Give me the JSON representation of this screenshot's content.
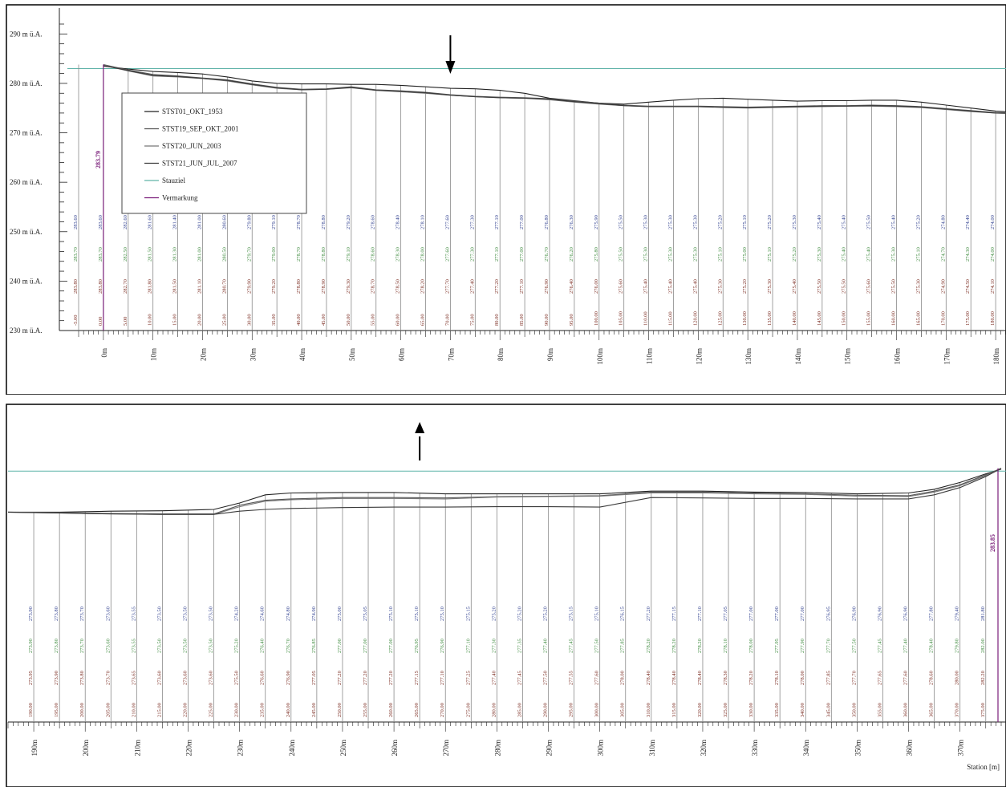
{
  "colors": {
    "frame": "#000000",
    "reference_line": "#5fb3a8",
    "station_line": "#8a8a8a",
    "profile": "#333333",
    "axis_dark": "#222222",
    "label_brown": "#7a2a1f",
    "label_green": "#3d8a3d",
    "label_blue": "#2f3f8f",
    "label_purple": "#7a1e7a"
  },
  "chart_data": [
    {
      "type": "line",
      "yticks": [
        "290 m ü.A.",
        "280 m ü.A.",
        "270 m ü.A.",
        "260 m ü.A.",
        "250 m ü.A.",
        "240 m ü.A.",
        "230 m ü.A."
      ],
      "ylim": [
        230,
        292
      ],
      "xlim": [
        -5,
        185
      ],
      "xtick_labels": [
        "0m",
        "10m",
        "20m",
        "30m",
        "40m",
        "50m",
        "60m",
        "70m",
        "80m",
        "90m",
        "100m",
        "110m",
        "120m",
        "130m",
        "140m",
        "150m",
        "160m",
        "170m",
        "180m"
      ],
      "xtick_values": [
        0,
        10,
        20,
        30,
        40,
        50,
        60,
        70,
        80,
        90,
        100,
        110,
        120,
        130,
        140,
        150,
        160,
        170,
        180
      ],
      "reference_level": 283.0,
      "start_level_label": "283.79",
      "legend": {
        "position": "upper-left",
        "entries": [
          "STST01_OKT_1953",
          "STST19_SEP_OKT_2001",
          "STST20_JUN_2003",
          "STST21_JUN_JUL_2007",
          "Stauziel",
          "Vermarkung"
        ]
      },
      "annotation": "arrow pointing down at 70m",
      "annotation_arrow_x": 70,
      "series": [
        {
          "name": "STST01_OKT_1953",
          "x": [
            0,
            5,
            10,
            15,
            20,
            25,
            30,
            35,
            40,
            45,
            50,
            55,
            60,
            65,
            70,
            75,
            80,
            85,
            90,
            95,
            100,
            105,
            110,
            115,
            120,
            125,
            130,
            135,
            140,
            145,
            150,
            155,
            160,
            165,
            170,
            175,
            180,
            185
          ],
          "y": [
            283.5,
            282.9,
            282.4,
            282.2,
            281.9,
            281.3,
            280.5,
            280.0,
            279.9,
            279.9,
            279.8,
            279.8,
            279.6,
            279.3,
            279.0,
            278.9,
            278.6,
            278.0,
            277.0,
            276.5,
            276.0,
            275.8,
            276.2,
            276.6,
            276.9,
            277.0,
            276.8,
            276.6,
            276.4,
            276.5,
            276.5,
            276.6,
            276.6,
            276.2,
            275.6,
            275.0,
            274.4,
            274.1
          ]
        },
        {
          "name": "STST19_SEP_OKT_2001",
          "x": [
            0,
            5,
            10,
            15,
            20,
            25,
            30,
            35,
            40,
            45,
            50,
            55,
            60,
            65,
            70,
            75,
            80,
            85,
            90,
            95,
            100,
            105,
            110,
            115,
            120,
            125,
            130,
            135,
            140,
            145,
            150,
            155,
            160,
            165,
            170,
            175,
            180,
            185
          ],
          "y": [
            283.8,
            282.7,
            281.8,
            281.5,
            281.1,
            280.7,
            279.9,
            279.2,
            278.8,
            278.9,
            279.3,
            278.7,
            278.5,
            278.2,
            277.7,
            277.4,
            277.2,
            277.1,
            276.9,
            276.4,
            276.0,
            275.6,
            275.4,
            275.4,
            275.4,
            275.3,
            275.2,
            275.3,
            275.4,
            275.5,
            275.5,
            275.6,
            275.5,
            275.3,
            274.9,
            274.5,
            274.1,
            274.0
          ]
        },
        {
          "name": "STST20_JUN_2003",
          "x": [
            0,
            5,
            10,
            15,
            20,
            25,
            30,
            35,
            40,
            45,
            50,
            55,
            60,
            65,
            70,
            75,
            80,
            85,
            90,
            95,
            100,
            105,
            110,
            115,
            120,
            125,
            130,
            135,
            140,
            145,
            150,
            155,
            160,
            165,
            170,
            175,
            180,
            185
          ],
          "y": [
            283.7,
            282.5,
            281.5,
            281.3,
            281.0,
            280.5,
            279.7,
            279.0,
            278.7,
            278.8,
            279.1,
            278.6,
            278.3,
            278.0,
            277.6,
            277.3,
            277.1,
            277.0,
            276.7,
            276.2,
            275.8,
            275.5,
            275.3,
            275.3,
            275.3,
            275.1,
            275.0,
            275.1,
            275.2,
            275.3,
            275.4,
            275.4,
            275.3,
            275.1,
            274.7,
            274.3,
            274.0,
            273.9
          ]
        },
        {
          "name": "STST21_JUN_JUL_2007",
          "x": [
            0,
            5,
            10,
            15,
            20,
            25,
            30,
            35,
            40,
            45,
            50,
            55,
            60,
            65,
            70,
            75,
            80,
            85,
            90,
            95,
            100,
            105,
            110,
            115,
            120,
            125,
            130,
            135,
            140,
            145,
            150,
            155,
            160,
            165,
            170,
            175,
            180,
            185
          ],
          "y": [
            283.6,
            282.6,
            281.6,
            281.4,
            281.0,
            280.6,
            279.8,
            279.1,
            278.7,
            278.8,
            279.2,
            278.6,
            278.4,
            278.1,
            277.6,
            277.3,
            277.1,
            277.0,
            276.8,
            276.3,
            275.9,
            275.5,
            275.3,
            275.3,
            275.3,
            275.2,
            275.1,
            275.2,
            275.3,
            275.4,
            275.4,
            275.5,
            275.4,
            275.2,
            274.8,
            274.4,
            274.0,
            273.9
          ]
        }
      ]
    },
    {
      "type": "line",
      "ylim": [
        228,
        292
      ],
      "xlim": [
        185,
        378
      ],
      "xtick_labels": [
        "190m",
        "200m",
        "210m",
        "220m",
        "230m",
        "240m",
        "250m",
        "260m",
        "270m",
        "280m",
        "290m",
        "300m",
        "310m",
        "320m",
        "330m",
        "340m",
        "350m",
        "360m",
        "370m"
      ],
      "xtick_values": [
        190,
        200,
        210,
        220,
        230,
        240,
        250,
        260,
        270,
        280,
        290,
        300,
        310,
        320,
        330,
        340,
        350,
        360,
        370
      ],
      "xlabel": "Station [m]",
      "reference_level": 283.0,
      "end_level_label": "283.85",
      "annotation": "arrow pointing up at 265m",
      "annotation_arrow_x": 265,
      "series": [
        {
          "name": "STST01_OKT_1953",
          "x": [
            185,
            195,
            205,
            215,
            225,
            230,
            235,
            240,
            250,
            260,
            270,
            280,
            290,
            300,
            310,
            320,
            330,
            340,
            350,
            360,
            365,
            370,
            375,
            378
          ],
          "y": [
            274.0,
            274.0,
            274.2,
            274.3,
            274.6,
            276.0,
            277.8,
            278.2,
            278.3,
            278.3,
            278.0,
            278.0,
            278.0,
            278.0,
            278.6,
            278.6,
            278.4,
            278.3,
            278.0,
            278.2,
            279.0,
            280.5,
            282.4,
            283.4
          ]
        },
        {
          "name": "STST19_SEP_OKT_2001",
          "x": [
            185,
            195,
            205,
            215,
            225,
            230,
            235,
            240,
            250,
            260,
            270,
            280,
            290,
            300,
            310,
            320,
            330,
            340,
            350,
            360,
            365,
            370,
            375,
            378
          ],
          "y": [
            274.0,
            273.9,
            273.7,
            273.6,
            273.6,
            275.5,
            276.6,
            276.9,
            277.2,
            277.2,
            277.1,
            277.4,
            277.5,
            277.6,
            278.4,
            278.4,
            278.2,
            278.0,
            277.7,
            277.6,
            278.6,
            280.0,
            282.2,
            283.6
          ]
        },
        {
          "name": "STST20_JUN_2003",
          "x": [
            185,
            195,
            205,
            215,
            225,
            230,
            235,
            240,
            250,
            260,
            270,
            280,
            290,
            300,
            310,
            320,
            330,
            340,
            350,
            360,
            365,
            370,
            375,
            378
          ],
          "y": [
            274.0,
            273.8,
            273.6,
            273.5,
            273.5,
            275.2,
            276.4,
            276.7,
            277.0,
            277.0,
            276.9,
            277.3,
            277.4,
            277.5,
            278.2,
            278.2,
            278.0,
            277.9,
            277.5,
            277.4,
            278.4,
            279.8,
            282.0,
            283.5
          ]
        },
        {
          "name": "STST21_JUN_JUL_2007",
          "x": [
            185,
            195,
            205,
            215,
            225,
            230,
            235,
            240,
            250,
            260,
            270,
            280,
            290,
            300,
            310,
            320,
            330,
            340,
            350,
            360,
            365,
            370,
            375,
            378
          ],
          "y": [
            274.0,
            273.8,
            273.6,
            273.5,
            273.5,
            274.2,
            274.6,
            274.8,
            275.0,
            275.1,
            275.1,
            275.2,
            275.2,
            275.1,
            277.2,
            277.1,
            277.0,
            277.0,
            276.9,
            276.9,
            277.8,
            279.4,
            281.8,
            283.6
          ]
        }
      ]
    }
  ]
}
